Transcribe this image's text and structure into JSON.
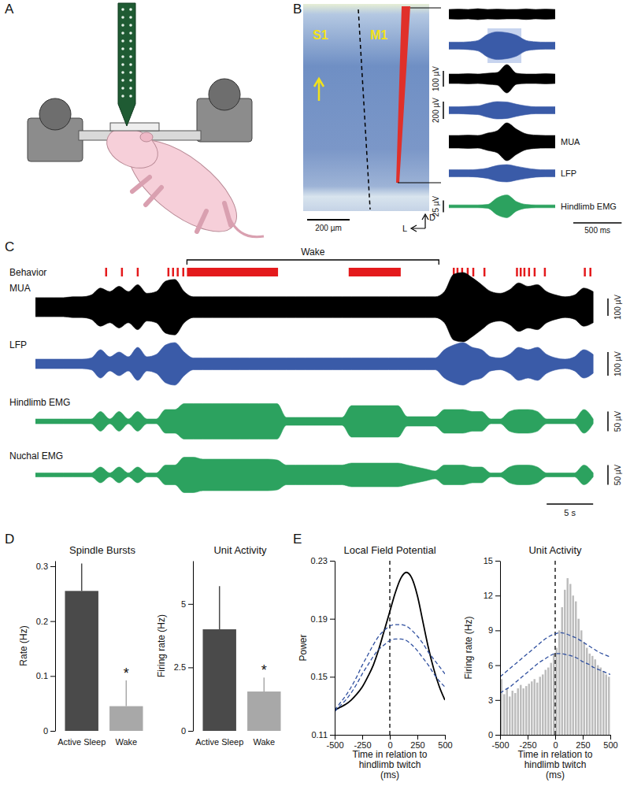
{
  "panels": [
    "A",
    "B",
    "C",
    "D",
    "E"
  ],
  "histology": {
    "regions": [
      "S1",
      "M1"
    ],
    "scale_bar": {
      "value": 200,
      "label": "200 µm"
    },
    "orientation": [
      "D",
      "L"
    ]
  },
  "recording_b": {
    "t": [
      0,
      0.1,
      0.2,
      0.3,
      0.4,
      0.5,
      0.6,
      0.7,
      0.8,
      0.9,
      1.0,
      1.1
    ],
    "xlim": [
      0,
      1.1
    ],
    "highlight": [
      0.4,
      0.75
    ],
    "time_scale_bar": {
      "value": 0.5,
      "label": "500 ms"
    },
    "traces": [
      {
        "color": "#000000",
        "values": [
          30,
          32,
          30,
          35,
          30,
          32,
          30,
          30,
          34,
          30,
          32,
          30
        ]
      },
      {
        "color": "#3a5ba8",
        "values": [
          40,
          40,
          45,
          60,
          130,
          160,
          150,
          120,
          60,
          45,
          40,
          40
        ]
      },
      {
        "color": "#000000",
        "values": [
          30,
          30,
          32,
          30,
          35,
          40,
          90,
          35,
          30,
          30,
          32,
          30
        ],
        "scale_bar": {
          "value": 100,
          "label": "100 µV"
        }
      },
      {
        "color": "#3a5ba8",
        "values": [
          40,
          40,
          45,
          50,
          80,
          100,
          95,
          70,
          50,
          40,
          40,
          40
        ],
        "scale_bar": {
          "value": 200,
          "label": "200 µV"
        }
      },
      {
        "color": "#000000",
        "label": "MUA",
        "values": [
          40,
          40,
          42,
          40,
          55,
          70,
          120,
          80,
          50,
          42,
          40,
          40
        ]
      },
      {
        "color": "#3a5ba8",
        "label": "LFP",
        "values": [
          40,
          40,
          40,
          45,
          60,
          90,
          100,
          80,
          60,
          45,
          40,
          40
        ]
      },
      {
        "color": "#2ca25f",
        "label": "Hindlimb EMG",
        "values": [
          3,
          3,
          3,
          3,
          4,
          18,
          24,
          10,
          4,
          3,
          3,
          3
        ],
        "scale_bar": {
          "value": 25,
          "label": "25 µV"
        }
      }
    ]
  },
  "recording_c": {
    "t": [
      0,
      1,
      2,
      3,
      4,
      5,
      6,
      7,
      8,
      9,
      10,
      11,
      12,
      13,
      14,
      15,
      16,
      17,
      18,
      19,
      20,
      21,
      22,
      23,
      24,
      25,
      26,
      27,
      28,
      29,
      30,
      31,
      32,
      33,
      34,
      35,
      36,
      37,
      38,
      39,
      40,
      41,
      42,
      43,
      44,
      45,
      46,
      47,
      48,
      49,
      50,
      51,
      52,
      53,
      54,
      55,
      56,
      57,
      58,
      59,
      60
    ],
    "xlim": [
      0,
      61
    ],
    "wake": {
      "label": "Wake",
      "range": [
        16.3,
        43.4
      ]
    },
    "behavior": {
      "label": "Behavior",
      "color": "#e41a1c",
      "events": [
        [
          7.5,
          7.5
        ],
        [
          9.2,
          9.2
        ],
        [
          10.9,
          10.9
        ],
        [
          14.2,
          14.2
        ],
        [
          14.7,
          14.7
        ],
        [
          15.2,
          15.2
        ],
        [
          15.8,
          15.8
        ],
        [
          16.3,
          26.1
        ],
        [
          33.7,
          39.3
        ],
        [
          44.9,
          44.9
        ],
        [
          45.3,
          45.3
        ],
        [
          45.8,
          45.8
        ],
        [
          46.4,
          46.4
        ],
        [
          47.0,
          47.0
        ],
        [
          48.2,
          48.2
        ],
        [
          51.7,
          51.7
        ],
        [
          52.1,
          52.1
        ],
        [
          52.5,
          52.5
        ],
        [
          53.0,
          53.0
        ],
        [
          53.6,
          53.6
        ],
        [
          54.7,
          54.7
        ],
        [
          59.0,
          59.0
        ],
        [
          59.6,
          59.6
        ]
      ]
    },
    "time_scale_bar": {
      "value": 5,
      "label": "5 s"
    },
    "traces": [
      {
        "label": "MUA",
        "color": "#000000",
        "scale_bar": {
          "value": 100,
          "label": "100 µV"
        },
        "values": [
          55,
          55,
          55,
          55,
          60,
          60,
          70,
          110,
          90,
          120,
          90,
          130,
          80,
          90,
          150,
          160,
          90,
          60,
          60,
          60,
          60,
          60,
          60,
          60,
          60,
          60,
          60,
          60,
          60,
          60,
          60,
          60,
          60,
          60,
          60,
          60,
          60,
          60,
          60,
          60,
          60,
          60,
          60,
          60,
          90,
          190,
          200,
          170,
          130,
          90,
          80,
          100,
          140,
          120,
          130,
          90,
          70,
          60,
          70,
          110,
          90
        ]
      },
      {
        "label": "LFP",
        "color": "#3a5ba8",
        "scale_bar": {
          "value": 100,
          "label": "100 µV"
        },
        "values": [
          20,
          20,
          20,
          20,
          20,
          20,
          25,
          60,
          30,
          50,
          30,
          70,
          30,
          40,
          80,
          90,
          50,
          25,
          25,
          25,
          25,
          25,
          25,
          25,
          25,
          25,
          25,
          25,
          25,
          25,
          25,
          25,
          25,
          25,
          25,
          25,
          25,
          25,
          25,
          25,
          25,
          25,
          25,
          25,
          60,
          80,
          90,
          70,
          60,
          30,
          25,
          40,
          70,
          60,
          70,
          40,
          25,
          20,
          30,
          60,
          40
        ]
      },
      {
        "label": "Hindlimb EMG",
        "color": "#2ca25f",
        "scale_bar": {
          "value": 50,
          "label": "50 µV"
        },
        "values": [
          6,
          6,
          6,
          6,
          6,
          6,
          6,
          25,
          6,
          25,
          6,
          25,
          6,
          6,
          30,
          30,
          45,
          45,
          45,
          45,
          45,
          45,
          45,
          45,
          45,
          45,
          45,
          10,
          10,
          10,
          10,
          10,
          10,
          10,
          40,
          40,
          40,
          40,
          40,
          40,
          12,
          12,
          12,
          12,
          30,
          30,
          30,
          25,
          25,
          6,
          6,
          25,
          30,
          30,
          25,
          6,
          6,
          6,
          6,
          30,
          6
        ]
      },
      {
        "label": "Nuchal EMG",
        "color": "#2ca25f",
        "scale_bar": {
          "value": 50,
          "label": "50 µV"
        },
        "values": [
          5,
          5,
          5,
          5,
          5,
          5,
          5,
          20,
          5,
          20,
          5,
          20,
          5,
          5,
          25,
          25,
          45,
          45,
          40,
          40,
          40,
          40,
          40,
          40,
          40,
          40,
          38,
          25,
          25,
          25,
          25,
          25,
          25,
          25,
          30,
          30,
          30,
          30,
          30,
          30,
          25,
          20,
          15,
          10,
          25,
          25,
          25,
          20,
          20,
          5,
          5,
          20,
          25,
          25,
          20,
          5,
          5,
          5,
          5,
          25,
          5
        ]
      }
    ]
  },
  "chart_data": [
    {
      "type": "bar",
      "title": "Spindle Bursts",
      "y_label": "Rate (Hz)",
      "categories": [
        "Active Sleep",
        "Wake"
      ],
      "values": [
        0.255,
        0.045
      ],
      "errors": [
        0.05,
        0.047
      ],
      "colors": [
        "#4a4a4a",
        "#a8a8a8"
      ],
      "ylim": [
        0,
        0.31
      ],
      "yticks": [
        0,
        0.1,
        0.2,
        0.3
      ],
      "annotations": [
        {
          "text": "*",
          "x": "Wake"
        }
      ]
    },
    {
      "type": "bar",
      "title": "Unit Activity",
      "y_label": "Firing rate (Hz)",
      "categories": [
        "Active Sleep",
        "Wake"
      ],
      "values": [
        4.0,
        1.55
      ],
      "errors": [
        1.7,
        0.55
      ],
      "colors": [
        "#4a4a4a",
        "#a8a8a8"
      ],
      "ylim": [
        0,
        6.7
      ],
      "yticks": [
        0,
        2.5,
        5
      ],
      "annotations": [
        {
          "text": "*",
          "x": "Wake"
        }
      ]
    },
    {
      "type": "line",
      "title": "Local Field Potential",
      "y_label": "Power",
      "x_label": [
        "Time in relation to",
        "hindlimb twitch",
        "(ms)"
      ],
      "x": [
        -500,
        -450,
        -400,
        -350,
        -300,
        -250,
        -200,
        -150,
        -100,
        -50,
        0,
        50,
        100,
        150,
        200,
        250,
        300,
        350,
        400,
        450,
        500
      ],
      "series": [
        {
          "color": "#000000",
          "values": [
            0.127,
            0.129,
            0.131,
            0.134,
            0.138,
            0.143,
            0.15,
            0.158,
            0.169,
            0.182,
            0.195,
            0.208,
            0.218,
            0.222,
            0.218,
            0.206,
            0.188,
            0.17,
            0.155,
            0.143,
            0.134
          ]
        },
        {
          "color": "#2f4f9f",
          "line_style": "dashed",
          "values": [
            0.127,
            0.132,
            0.137,
            0.143,
            0.15,
            0.158,
            0.165,
            0.172,
            0.178,
            0.182,
            0.185,
            0.186,
            0.186,
            0.185,
            0.182,
            0.178,
            0.173,
            0.167,
            0.162,
            0.157,
            0.152
          ]
        },
        {
          "color": "#2f4f9f",
          "line_style": "dashed",
          "values": [
            0.126,
            0.13,
            0.134,
            0.139,
            0.145,
            0.152,
            0.158,
            0.164,
            0.169,
            0.172,
            0.175,
            0.176,
            0.176,
            0.175,
            0.172,
            0.168,
            0.163,
            0.158,
            0.152,
            0.147,
            0.143
          ]
        }
      ],
      "vline": 0,
      "xlim": [
        -500,
        500
      ],
      "xticks": [
        -500,
        -250,
        0,
        250,
        500
      ],
      "ylim": [
        0.11,
        0.23
      ],
      "yticks": [
        0.11,
        0.15,
        0.19,
        0.23
      ]
    },
    {
      "type": "histogram",
      "title": "Unit Activity",
      "y_label": "Firing rate (Hz)",
      "x_label": [
        "Time in relation to",
        "hindlimb twitch",
        "(ms)"
      ],
      "bins": [
        -500,
        -475,
        -450,
        -425,
        -400,
        -375,
        -350,
        -325,
        -300,
        -275,
        -250,
        -225,
        -200,
        -175,
        -150,
        -125,
        -100,
        -75,
        -50,
        -25,
        0,
        25,
        50,
        75,
        100,
        125,
        150,
        175,
        200,
        225,
        250,
        275,
        300,
        325,
        350,
        375,
        400,
        425,
        450,
        475,
        500
      ],
      "values": [
        4.8,
        3.5,
        4.0,
        3.3,
        3.8,
        3.6,
        4.0,
        4.3,
        4.0,
        4.2,
        4.4,
        4.6,
        4.8,
        4.5,
        5.0,
        5.2,
        5.6,
        5.8,
        6.2,
        7.0,
        7.5,
        9.0,
        11.0,
        12.5,
        13.5,
        13.0,
        12.0,
        11.5,
        10.0,
        9.0,
        8.0,
        7.5,
        7.0,
        6.8,
        6.5,
        6.0,
        5.8,
        5.5,
        5.2,
        5.0
      ],
      "color": "#bdbdbd",
      "series": [
        {
          "type": "line",
          "color": "#2f4f9f",
          "line_style": "dashed",
          "x": [
            -500,
            -450,
            -400,
            -350,
            -300,
            -250,
            -200,
            -150,
            -100,
            -50,
            0,
            50,
            100,
            150,
            200,
            250,
            300,
            350,
            400,
            450,
            500
          ],
          "values": [
            5.0,
            5.4,
            5.8,
            6.2,
            6.6,
            7.0,
            7.4,
            7.8,
            8.2,
            8.5,
            8.7,
            8.8,
            8.7,
            8.5,
            8.3,
            8.0,
            7.7,
            7.4,
            7.1,
            6.9,
            6.7
          ]
        },
        {
          "type": "line",
          "color": "#2f4f9f",
          "line_style": "dashed",
          "x": [
            -500,
            -450,
            -400,
            -350,
            -300,
            -250,
            -200,
            -150,
            -100,
            -50,
            0,
            50,
            100,
            150,
            200,
            250,
            300,
            350,
            400,
            450,
            500
          ],
          "values": [
            3.6,
            3.9,
            4.2,
            4.6,
            5.0,
            5.4,
            5.8,
            6.2,
            6.5,
            6.8,
            7.0,
            7.0,
            6.9,
            6.8,
            6.6,
            6.3,
            6.1,
            5.8,
            5.6,
            5.4,
            5.2
          ]
        }
      ],
      "vline": 0,
      "xlim": [
        -500,
        500
      ],
      "xticks": [
        -500,
        -250,
        0,
        250,
        500
      ],
      "ylim": [
        0,
        15
      ],
      "yticks": [
        0,
        3,
        6,
        9,
        12,
        15
      ]
    }
  ]
}
